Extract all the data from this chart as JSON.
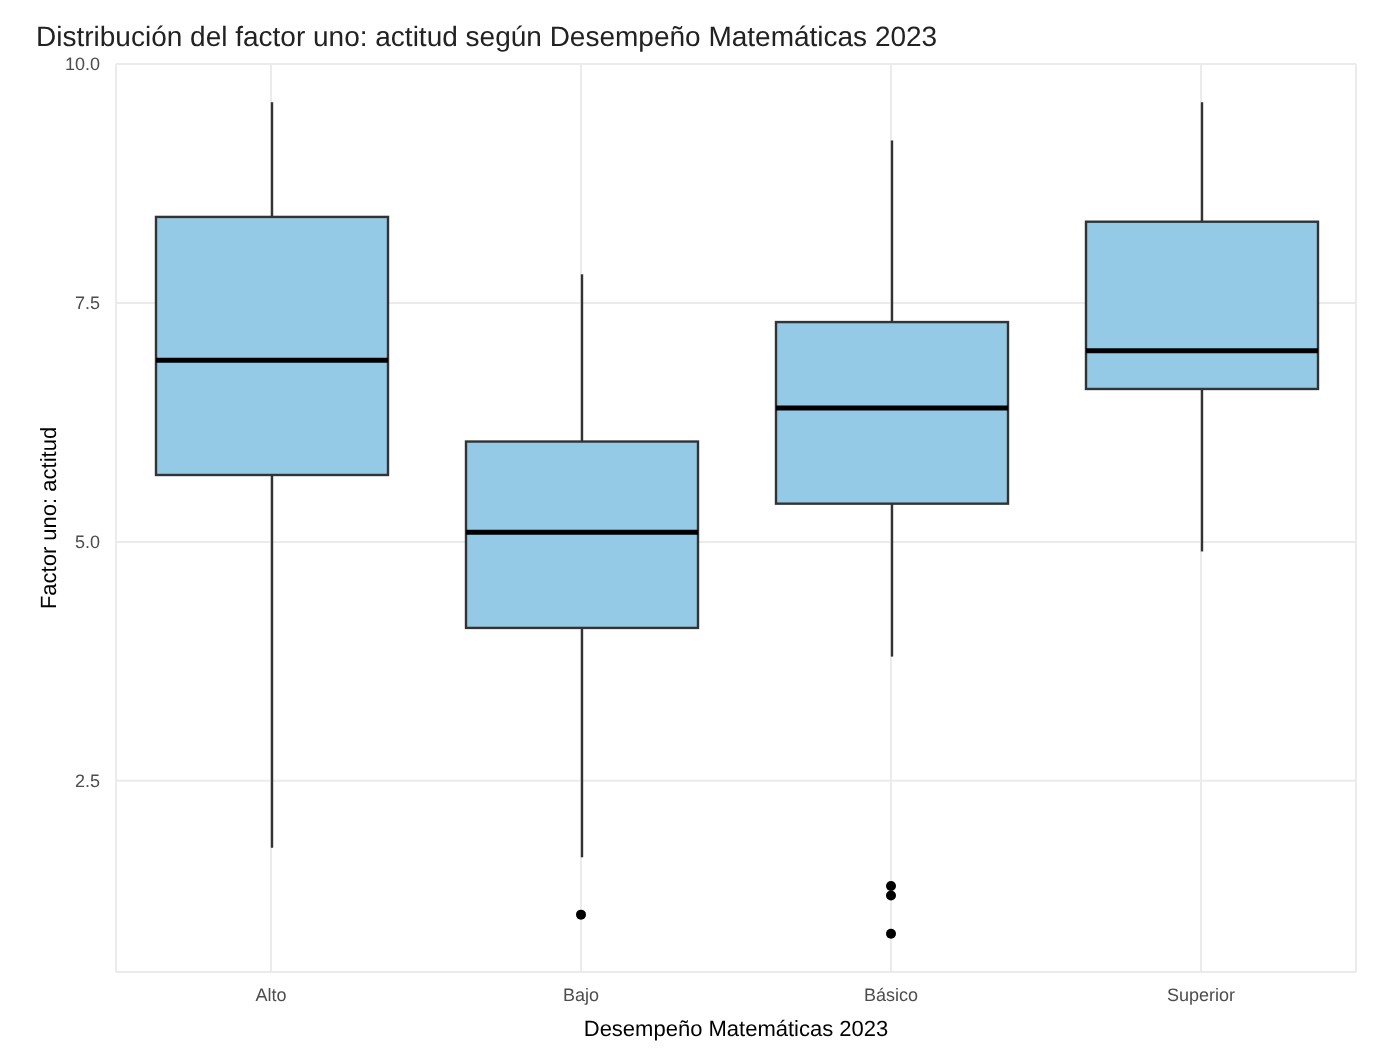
{
  "chart_data": {
    "type": "box",
    "title": "Distribución del factor uno: actitud según Desempeño Matemáticas 2023",
    "xlabel": "Desempeño Matemáticas 2023",
    "ylabel": "Factor uno: actitud",
    "categories": [
      "Alto",
      "Bajo",
      "Básico",
      "Superior"
    ],
    "color": "#94cae6",
    "boxes": [
      {
        "low": 1.8,
        "q1": 5.7,
        "median": 6.9,
        "q3": 8.4,
        "high": 9.6
      },
      {
        "low": 1.7,
        "q1": 4.1,
        "median": 5.1,
        "q3": 6.05,
        "high": 7.8,
        "outliers": [
          1.1
        ]
      },
      {
        "low": 3.8,
        "q1": 5.4,
        "median": 6.4,
        "q3": 7.3,
        "high": 9.2,
        "outliers": [
          1.4,
          1.3,
          0.9
        ]
      },
      {
        "low": 4.9,
        "q1": 6.6,
        "median": 7.0,
        "q3": 8.35,
        "high": 9.6
      }
    ],
    "ylim": [
      0.5,
      10.0
    ],
    "yticks": [
      {
        "value": 2.5,
        "label": "2.5"
      },
      {
        "value": 5,
        "label": "5.0"
      },
      {
        "value": 7.5,
        "label": "7.5"
      },
      {
        "value": 10,
        "label": "10.0"
      }
    ],
    "grid": true
  }
}
